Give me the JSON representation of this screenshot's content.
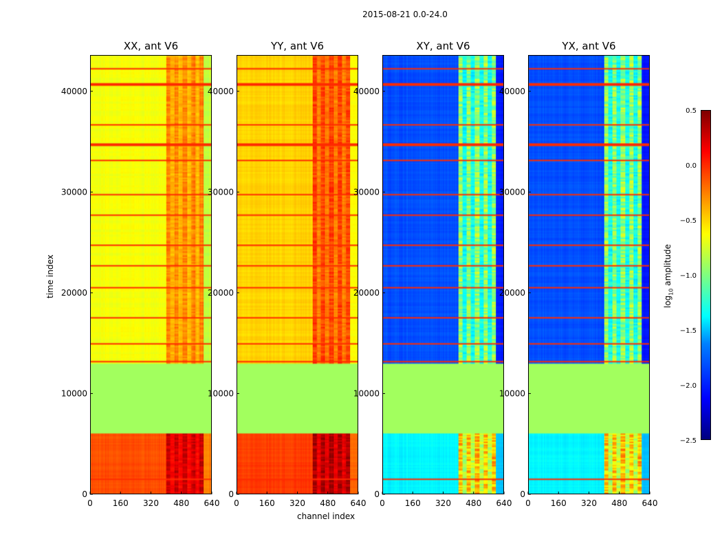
{
  "title": "2015-08-21 0.0-24.0",
  "chart_data": {
    "type": "heatmap",
    "xlabel": "channel index",
    "ylabel": "time index",
    "xlim": [
      0,
      640
    ],
    "ylim": [
      0,
      43600
    ],
    "xticks": [
      0,
      160,
      320,
      480,
      640
    ],
    "yticks": [
      0,
      10000,
      20000,
      30000,
      40000
    ],
    "colorbar": {
      "label_base": "log",
      "label_sub": "10",
      "label_rest": " amplitude",
      "range": [
        -2.5,
        0.5
      ],
      "ticks": [
        "0.5",
        "0.0",
        "−0.5",
        "−1.0",
        "−1.5",
        "−2.0",
        "−2.5"
      ],
      "colormap": "jet"
    },
    "flagged_time_range": [
      6000,
      13000
    ],
    "flag_value": -0.9,
    "rfi_lines_time": [
      1500,
      13200,
      15000,
      17600,
      20600,
      22800,
      24800,
      27800,
      29800,
      33200,
      34800,
      36800,
      40800,
      42400
    ],
    "panels": [
      {
        "title": "XX, ant V6",
        "low_level": -0.1,
        "high_level": -0.65,
        "band_boost": 0.4
      },
      {
        "title": "YY, ant V6",
        "low_level": -0.05,
        "high_level": -0.5,
        "band_boost": 0.45
      },
      {
        "title": "XY, ant V6",
        "low_level": -1.4,
        "high_level": -1.9,
        "band_boost": 1.0
      },
      {
        "title": "YX, ant V6",
        "low_level": -1.4,
        "high_level": -1.9,
        "band_boost": 1.0
      }
    ]
  }
}
